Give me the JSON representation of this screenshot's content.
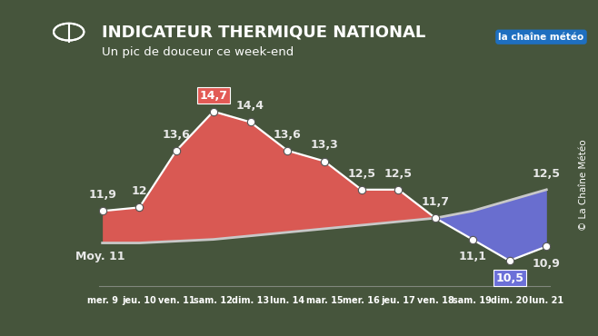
{
  "chart_data": {
    "type": "line",
    "title": "INDICATEUR THERMIQUE NATIONAL",
    "subtitle": "Un pic de douceur ce week-end",
    "annotations": [
      "la chaîne météo",
      "© La Chaîne Météo"
    ],
    "categories": [
      "mer. 9",
      "jeu. 10",
      "ven. 11",
      "sam. 12",
      "dim. 13",
      "lun. 14",
      "mar. 15",
      "mer. 16",
      "jeu. 17",
      "ven. 18",
      "sam. 19",
      "dim. 20",
      "lun. 21"
    ],
    "values": [
      11.9,
      12,
      13.6,
      14.7,
      14.4,
      13.6,
      13.3,
      12.5,
      12.5,
      11.7,
      11.1,
      10.5,
      10.9
    ],
    "value_labels": [
      "11,9",
      "12",
      "13,6",
      "14,7",
      "14,4",
      "13,6",
      "13,3",
      "12,5",
      "12,5",
      "11,7",
      "11,1",
      "10,5",
      "10,9"
    ],
    "color": "#ffffff",
    "average": {
      "values": [
        11.0,
        11.0,
        11.05,
        11.1,
        11.2,
        11.3,
        11.4,
        11.5,
        11.6,
        11.7,
        11.9,
        12.2,
        12.5
      ],
      "value_labels": [
        "Moy. 11",
        null,
        null,
        null,
        null,
        null,
        null,
        null,
        null,
        null,
        null,
        null,
        "12,5"
      ],
      "color": "#c8c8c8"
    },
    "ylim": [
      9.8,
      15
    ],
    "grid": false,
    "data_labels": true,
    "tick_labels": "x"
  }
}
